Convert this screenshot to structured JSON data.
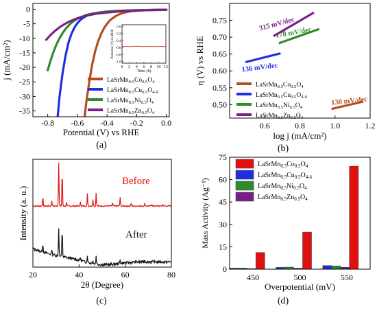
{
  "panels": {
    "a": {
      "label": "(a)"
    },
    "b": {
      "label": "(b)"
    },
    "c": {
      "label": "(c)"
    },
    "d": {
      "label": "(d)"
    }
  },
  "colors": {
    "co": "#b34d1d",
    "cu": "#1f2fe0",
    "ni": "#2e8b2e",
    "zn": "#7a1f8a",
    "red": "#e01010",
    "black": "#111111",
    "inset_trace": "#c0392b"
  },
  "chart_data": [
    {
      "id": "a",
      "type": "line",
      "xlabel": "Potential (V) vs RHE",
      "ylabel": "j (mA/cm²)",
      "xlim": [
        -0.9,
        0.02
      ],
      "ylim": [
        -37,
        2
      ],
      "xticks": [
        "-0.8",
        "-0.6",
        "-0.4",
        "-0.2",
        "0.0"
      ],
      "xtick_values": [
        -0.8,
        -0.6,
        -0.4,
        -0.2,
        0.0
      ],
      "yticks": [
        "0",
        "-5",
        "-10",
        "-15",
        "-20",
        "-25",
        "-30",
        "-35"
      ],
      "ytick_values": [
        0,
        -5,
        -10,
        -15,
        -20,
        -25,
        -30,
        -35
      ],
      "series": [
        {
          "name": "LaSrMn0.5Co0.5O4",
          "name_parts": [
            [
              "LaSrMn",
              "0.5",
              "Co",
              "0.5",
              "O",
              "4"
            ]
          ],
          "color_key": "co",
          "x": [
            -0.551,
            -0.54,
            -0.52,
            -0.5,
            -0.48,
            -0.46,
            -0.44,
            -0.42,
            -0.4,
            -0.38,
            -0.36,
            -0.34,
            -0.32,
            -0.3,
            -0.28,
            -0.26,
            -0.24,
            -0.22,
            -0.2,
            -0.15,
            -0.1,
            0.0
          ],
          "y": [
            -37,
            -32,
            -25,
            -19,
            -14.5,
            -11,
            -8.5,
            -6.5,
            -5,
            -3.8,
            -3,
            -2.3,
            -1.8,
            -1.4,
            -1.1,
            -0.9,
            -0.7,
            -0.6,
            -0.5,
            -0.35,
            -0.25,
            -0.15
          ]
        },
        {
          "name": "LaSrMn0.5Cu0.5O4-δ",
          "name_parts": [
            [
              "LaSrMn",
              "0.5",
              "Cu",
              "0.5",
              "O",
              "4-δ"
            ]
          ],
          "color_key": "cu",
          "x": [
            -0.733,
            -0.72,
            -0.7,
            -0.68,
            -0.66,
            -0.64,
            -0.62,
            -0.6,
            -0.58,
            -0.56,
            -0.54,
            -0.52,
            -0.5,
            -0.45,
            -0.4,
            -0.35,
            -0.3,
            -0.2,
            -0.1,
            0.0
          ],
          "y": [
            -37,
            -30,
            -22,
            -16,
            -11.5,
            -8.5,
            -6.3,
            -4.8,
            -3.7,
            -2.9,
            -2.3,
            -1.9,
            -1.6,
            -1.1,
            -0.8,
            -0.6,
            -0.5,
            -0.35,
            -0.25,
            -0.15
          ]
        },
        {
          "name": "LaSrMn0.5Ni0.5O4",
          "name_parts": [
            [
              "LaSrMn",
              "0.5",
              "Ni",
              "0.5",
              "O",
              "4"
            ]
          ],
          "color_key": "ni",
          "x": [
            -0.8,
            -0.78,
            -0.76,
            -0.74,
            -0.72,
            -0.7,
            -0.68,
            -0.66,
            -0.64,
            -0.62,
            -0.6,
            -0.58,
            -0.56,
            -0.54,
            -0.52,
            -0.5,
            -0.45,
            -0.4,
            -0.3,
            -0.2,
            -0.1,
            0.0
          ],
          "y": [
            -21,
            -17.5,
            -14.5,
            -12,
            -10,
            -8.2,
            -6.8,
            -5.6,
            -4.7,
            -3.9,
            -3.3,
            -2.8,
            -2.4,
            -2.0,
            -1.7,
            -1.5,
            -1.1,
            -0.8,
            -0.5,
            -0.35,
            -0.25,
            -0.15
          ]
        },
        {
          "name": "LaSrMn0.5Zn0.5O4",
          "name_parts": [
            [
              "LaSrMn",
              "0.5",
              "Zn",
              "0.5",
              "O",
              "4"
            ]
          ],
          "color_key": "zn",
          "x": [
            -0.81,
            -0.78,
            -0.75,
            -0.72,
            -0.69,
            -0.66,
            -0.63,
            -0.6,
            -0.57,
            -0.54,
            -0.51,
            -0.48,
            -0.45,
            -0.4,
            -0.35,
            -0.3,
            -0.2,
            -0.1,
            0.0
          ],
          "y": [
            -10.5,
            -8.8,
            -7.4,
            -6.2,
            -5.2,
            -4.4,
            -3.7,
            -3.1,
            -2.6,
            -2.2,
            -1.9,
            -1.6,
            -1.4,
            -1.1,
            -0.9,
            -0.7,
            -0.45,
            -0.3,
            -0.15
          ]
        }
      ],
      "legend_position": "bottom-right",
      "inset": {
        "xlabel": "Time (h)",
        "ylabel": "Potential (V) vs RHE",
        "xticks": [
          "0",
          "2",
          "4",
          "6",
          "8",
          "10",
          "12"
        ],
        "xtick_values": [
          0,
          2,
          4,
          6,
          8,
          10,
          12
        ],
        "yticks": [
          "0.0",
          "-0.2",
          "-0.4",
          "-0.6",
          "-0.8",
          "-1.0"
        ],
        "ytick_values": [
          0.0,
          -0.2,
          -0.4,
          -0.6,
          -0.8,
          -1.0
        ],
        "xlim": [
          0,
          12
        ],
        "ylim": [
          -1.05,
          0.05
        ],
        "series": [
          {
            "x": [
              0,
              0.5,
              1,
              2,
              3,
              4,
              5,
              6,
              7,
              8,
              9,
              10,
              11,
              12
            ],
            "y": [
              -0.58,
              -0.57,
              -0.57,
              -0.575,
              -0.57,
              -0.565,
              -0.57,
              -0.575,
              -0.57,
              -0.57,
              -0.575,
              -0.57,
              -0.57,
              -0.575
            ]
          }
        ]
      }
    },
    {
      "id": "b",
      "type": "line",
      "xlabel": "log j (mA/cm²)",
      "ylabel": "η (V) vs RHE",
      "xlim": [
        0.4,
        1.2
      ],
      "ylim": [
        0.46,
        0.8
      ],
      "xticks": [
        "0.6",
        "0.8",
        "1.0",
        "1.2"
      ],
      "xtick_values": [
        0.6,
        0.8,
        1.0,
        1.2
      ],
      "yticks": [
        "0.50",
        "0.55",
        "0.60",
        "0.65",
        "0.70",
        "0.75"
      ],
      "ytick_values": [
        0.5,
        0.55,
        0.6,
        0.65,
        0.7,
        0.75
      ],
      "series": [
        {
          "name": "LaSrMn0.5Co0.5O4",
          "color_key": "co",
          "x": [
            0.98,
            1.16
          ],
          "y": [
            0.487,
            0.509
          ],
          "annotation": "130 mV/dec"
        },
        {
          "name": "LaSrMn0.5Cu0.5O4-δ",
          "color_key": "cu",
          "x": [
            0.49,
            0.69
          ],
          "y": [
            0.626,
            0.652
          ],
          "annotation": "136 mV/dec"
        },
        {
          "name": "LaSrMn0.5Ni0.5O4",
          "color_key": "ni",
          "x": [
            0.68,
            0.91
          ],
          "y": [
            0.682,
            0.724
          ],
          "annotation": "178 mV/dec"
        },
        {
          "name": "LaSrMn0.5Zn0.5O4",
          "color_key": "zn",
          "x": [
            0.65,
            0.88
          ],
          "y": [
            0.703,
            0.773
          ],
          "annotation": "315 mV/dec"
        }
      ],
      "legend_position": "bottom-left"
    },
    {
      "id": "c",
      "type": "line",
      "xlabel": "2θ (Degree)",
      "ylabel": "Intensity (a. u.)",
      "xlim": [
        20,
        80
      ],
      "xticks": [
        "20",
        "40",
        "60",
        "80"
      ],
      "xtick_values": [
        20,
        40,
        60,
        80
      ],
      "series": [
        {
          "name": "Before",
          "color_key": "red",
          "peaks": [
            [
              24.3,
              0.22
            ],
            [
              28.2,
              0.12
            ],
            [
              31.2,
              1.0
            ],
            [
              32.7,
              0.82
            ],
            [
              34.6,
              0.08
            ],
            [
              40.6,
              0.1
            ],
            [
              43.6,
              0.28
            ],
            [
              46.0,
              0.16
            ],
            [
              47.4,
              0.3
            ],
            [
              54.5,
              0.07
            ],
            [
              57.8,
              0.2
            ],
            [
              62.5,
              0.06
            ],
            [
              68.5,
              0.06
            ],
            [
              71.6,
              0.04
            ],
            [
              76.3,
              0.04
            ]
          ]
        },
        {
          "name": "After",
          "color_key": "black",
          "peaks": [
            [
              24.3,
              0.18
            ],
            [
              28.2,
              0.1
            ],
            [
              31.2,
              0.55
            ],
            [
              32.7,
              0.55
            ],
            [
              40.6,
              0.06
            ],
            [
              43.6,
              0.14
            ],
            [
              46.0,
              0.07
            ],
            [
              47.4,
              0.16
            ],
            [
              57.8,
              0.08
            ],
            [
              68.5,
              0.04
            ]
          ]
        }
      ]
    },
    {
      "id": "d",
      "type": "bar",
      "xlabel": "Overpotential (mV)",
      "ylabel": "Mass Activity (Ag⁻¹)",
      "categories": [
        "450",
        "500",
        "550"
      ],
      "ylim": [
        0,
        75
      ],
      "yticks": [
        "0",
        "15",
        "30",
        "45",
        "60",
        "75"
      ],
      "ytick_values": [
        0,
        15,
        30,
        45,
        60,
        75
      ],
      "series": [
        {
          "name": "LaSrMn0.5Co0.5O4",
          "name_parts": [
            [
              "LaSrMn",
              "0.5",
              "Co",
              "0.5",
              "O",
              "4"
            ]
          ],
          "color_key": "red",
          "values": [
            11.2,
            24.8,
            69.0
          ]
        },
        {
          "name": "LaSrMn0.5Cu0.5O4-δ",
          "name_parts": [
            [
              "LaSrMn",
              "0.5",
              "Cu",
              "0.5",
              "O",
              "4-δ"
            ]
          ],
          "color_key": "cu",
          "values": [
            0.7,
            1.2,
            2.4
          ]
        },
        {
          "name": "LaSrMn0.5Ni0.5O4",
          "name_parts": [
            [
              "LaSrMn",
              "0.5",
              "Ni",
              "0.5",
              "O",
              "4"
            ]
          ],
          "color_key": "ni",
          "values": [
            0.8,
            1.4,
            2.2
          ]
        },
        {
          "name": "LaSrMn0.5Zn0.5O4",
          "name_parts": [
            [
              "LaSrMn",
              "0.5",
              "Zn",
              "0.5",
              "O",
              "4"
            ]
          ],
          "color_key": "zn",
          "values": [
            0.4,
            0.7,
            1.3
          ]
        }
      ],
      "legend_position": "top-left"
    }
  ]
}
